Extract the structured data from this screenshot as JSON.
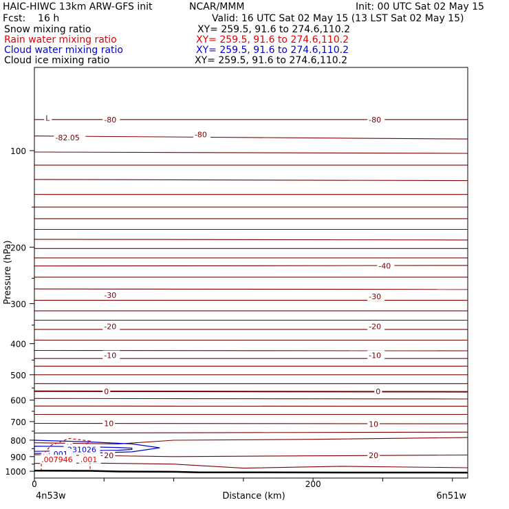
{
  "header": {
    "title_left": "HAIC-HIWC 13km ARW-GFS init",
    "title_mid": "NCAR/MMM",
    "init": "Init: 00 UTC Sat 02 May 15",
    "fcst": "Fcst:    16 h",
    "valid": "Valid: 16 UTC Sat 02 May 15 (13 LST Sat 02 May 15)"
  },
  "fields": [
    {
      "name": "Snow mixing ratio",
      "xy": "XY= 259.5, 91.6 to 274.6,110.2",
      "color": "#000000"
    },
    {
      "name": "Rain water mixing ratio",
      "xy": "XY= 259.5, 91.6 to 274.6,110.2",
      "color": "#e00000"
    },
    {
      "name": "Cloud water mixing ratio",
      "xy": "XY= 259.5, 91.6 to 274.6,110.2",
      "color": "#0000cc"
    },
    {
      "name": "Cloud ice mixing ratio",
      "xy": "XY= 259.5, 91.6 to 274.6,110.2",
      "color": "#000000"
    }
  ],
  "colors": {
    "temperature": "#7a0000",
    "terrain": "#000000",
    "cloud_water": "#0000cc",
    "rain_water": "#e00000",
    "axes": "#000000"
  },
  "chart_data": {
    "type": "contour cross-section",
    "xlabel": "Distance (km)",
    "ylabel": "Pressure (hPa)",
    "xlim": [
      0,
      311
    ],
    "ylim": [
      1050,
      55
    ],
    "y_log_scale": true,
    "xticks": [
      {
        "value": 0,
        "label": "0"
      },
      {
        "value": 200,
        "label": "200"
      }
    ],
    "x_minor_ticks": [
      0,
      50,
      100,
      150,
      200,
      250,
      300
    ],
    "yticks": [
      100,
      200,
      300,
      400,
      500,
      600,
      700,
      800,
      900,
      1000
    ],
    "y_minor_ticks": [
      150,
      250,
      350,
      450,
      550,
      650,
      750,
      850,
      950
    ],
    "endpoint_left": "4n53w",
    "endpoint_right": "6n51w",
    "temperature_contours": [
      [
        0,
        80,
        311,
        80
      ],
      [
        0,
        90,
        311,
        92
      ],
      [
        0,
        101,
        311,
        102
      ],
      [
        0,
        111,
        311,
        111
      ],
      [
        0,
        123,
        311,
        124
      ],
      [
        0,
        137,
        311,
        137
      ],
      [
        0,
        150,
        311,
        150
      ],
      [
        0,
        163,
        311,
        163
      ],
      [
        0,
        176,
        311,
        176
      ],
      [
        0,
        189,
        311,
        190
      ],
      [
        0,
        202,
        311,
        202
      ],
      [
        0,
        216,
        311,
        216
      ],
      [
        0,
        229,
        311,
        228
      ],
      [
        0,
        248,
        311,
        248
      ],
      [
        0,
        270,
        311,
        271
      ],
      [
        0,
        293,
        311,
        293
      ],
      [
        0,
        316,
        311,
        316
      ],
      [
        0,
        338,
        311,
        338
      ],
      [
        0,
        361,
        311,
        361
      ],
      [
        0,
        390,
        311,
        390
      ],
      [
        0,
        420,
        311,
        421
      ],
      [
        0,
        445,
        311,
        445
      ],
      [
        0,
        470,
        311,
        470
      ],
      [
        0,
        500,
        311,
        500
      ],
      [
        0,
        533,
        311,
        533
      ],
      [
        0,
        563,
        311,
        565
      ],
      [
        0,
        593,
        311,
        595
      ],
      [
        0,
        626,
        311,
        627
      ],
      [
        0,
        665,
        311,
        665
      ],
      [
        0,
        709,
        311,
        711
      ],
      [
        0,
        760,
        311,
        755
      ],
      [
        0,
        815,
        60,
        822,
        100,
        800,
        200,
        795,
        311,
        785
      ],
      [
        0,
        888,
        100,
        900,
        200,
        895,
        311,
        890
      ],
      [
        0,
        945,
        40,
        943,
        100,
        950,
        150,
        978,
        220,
        965,
        311,
        975
      ]
    ],
    "temperature_labels": [
      {
        "text": "-80",
        "x": 50,
        "p": 80
      },
      {
        "text": "-80",
        "x": 115,
        "p": 89
      },
      {
        "text": "-80",
        "x": 240,
        "p": 80
      },
      {
        "text": "-82.05",
        "x": 15,
        "p": 91
      },
      {
        "text": "L",
        "x": 8,
        "p": 79
      },
      {
        "text": "-40",
        "x": 247,
        "p": 229
      },
      {
        "text": "-30",
        "x": 50,
        "p": 282
      },
      {
        "text": "-30",
        "x": 240,
        "p": 285
      },
      {
        "text": "-20",
        "x": 50,
        "p": 353
      },
      {
        "text": "-20",
        "x": 240,
        "p": 353
      },
      {
        "text": "-10",
        "x": 50,
        "p": 435
      },
      {
        "text": "-10",
        "x": 240,
        "p": 435
      },
      {
        "text": "0",
        "x": 50,
        "p": 564
      },
      {
        "text": "0",
        "x": 245,
        "p": 564
      },
      {
        "text": "10",
        "x": 50,
        "p": 709
      },
      {
        "text": "10",
        "x": 240,
        "p": 712
      },
      {
        "text": "20",
        "x": 50,
        "p": 893
      },
      {
        "text": "20",
        "x": 240,
        "p": 893
      }
    ],
    "terrain_pressure": [
      [
        0,
        996
      ],
      [
        40,
        997
      ],
      [
        60,
        1002
      ],
      [
        100,
        1004
      ],
      [
        118,
        1008
      ],
      [
        200,
        1009
      ],
      [
        311,
        1010
      ]
    ],
    "cloud_water_contour": [
      [
        0,
        835
      ],
      [
        30,
        838
      ],
      [
        60,
        843
      ],
      [
        70,
        847
      ],
      [
        70,
        855
      ],
      [
        60,
        860
      ],
      [
        30,
        863
      ],
      [
        0,
        867
      ],
      [
        0,
        835
      ]
    ],
    "cloud_water_outer": [
      [
        0,
        800
      ],
      [
        40,
        810
      ],
      [
        70,
        822
      ],
      [
        90,
        845
      ],
      [
        70,
        870
      ],
      [
        40,
        878
      ],
      [
        0,
        880
      ]
    ],
    "cloud_water_labels": [
      {
        "text": "H",
        "x": 23,
        "p": 838
      },
      {
        "text": ".231026",
        "x": 22,
        "p": 855
      },
      {
        "text": ".001",
        "x": 12,
        "p": 883
      }
    ],
    "rain_water_contour": [
      [
        5,
        1000
      ],
      [
        5,
        900
      ],
      [
        12,
        830
      ],
      [
        25,
        790
      ],
      [
        40,
        805
      ],
      [
        35,
        840
      ],
      [
        35,
        880
      ],
      [
        40,
        930
      ],
      [
        40,
        1000
      ]
    ],
    "rain_water_labels": [
      {
        "text": "H",
        "x": 6,
        "p": 903
      },
      {
        "text": ".007946",
        "x": 5,
        "p": 920
      },
      {
        "text": ".001",
        "x": 33,
        "p": 918
      }
    ]
  }
}
